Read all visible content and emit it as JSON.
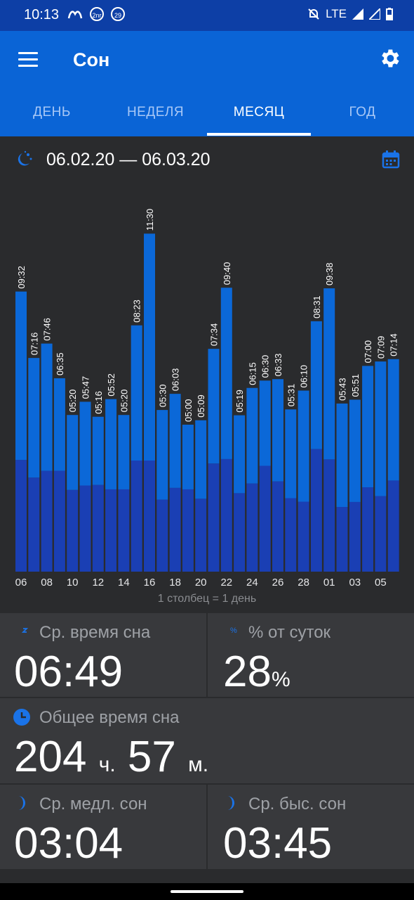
{
  "status_bar": {
    "time": "10:13",
    "badge_1": "2nr",
    "badge_2": "29",
    "network": "LTE"
  },
  "app_bar": {
    "title": "Сон"
  },
  "tabs": [
    {
      "label": "ДЕНЬ",
      "active": false
    },
    {
      "label": "НЕДЕЛЯ",
      "active": false
    },
    {
      "label": "МЕСЯЦ",
      "active": true
    },
    {
      "label": "ГОД",
      "active": false
    }
  ],
  "range": {
    "text": "06.02.20 — 06.03.20"
  },
  "chart_data": {
    "type": "bar",
    "stacked": true,
    "data_labels": [
      "09:32",
      "07:16",
      "07:46",
      "06:35",
      "05:20",
      "05:47",
      "05:16",
      "05:52",
      "05:20",
      "08:23",
      "11:30",
      "05:30",
      "06:03",
      "05:00",
      "05:09",
      "07:34",
      "09:40",
      "05:19",
      "06:15",
      "06:30",
      "06:33",
      "05:31",
      "06:10",
      "08:31",
      "09:38",
      "05:43",
      "05:51",
      "07:00",
      "07:09",
      "07:14"
    ],
    "x_tick_labels": [
      "06",
      "08",
      "10",
      "12",
      "14",
      "16",
      "18",
      "20",
      "22",
      "24",
      "26",
      "28",
      "01",
      "03",
      "05"
    ],
    "series": [
      {
        "color": "#1a3fb4",
        "values": [
          3.8,
          3.2,
          3.43,
          3.43,
          2.78,
          2.93,
          2.95,
          2.8,
          2.8,
          3.78,
          3.78,
          2.45,
          2.85,
          2.8,
          2.48,
          3.68,
          3.83,
          2.67,
          3.0,
          3.6,
          3.07,
          2.5,
          2.38,
          4.17,
          3.82,
          2.2,
          2.37,
          2.87,
          2.57,
          3.1
        ]
      },
      {
        "color": "#0b68d8",
        "values": [
          5.73,
          4.07,
          4.33,
          3.15,
          2.55,
          2.85,
          2.32,
          3.07,
          2.53,
          4.6,
          7.72,
          3.05,
          3.2,
          2.2,
          2.67,
          3.9,
          5.83,
          2.65,
          3.25,
          2.9,
          3.48,
          3.02,
          3.78,
          4.35,
          5.82,
          3.52,
          3.48,
          4.13,
          4.58,
          4.13
        ]
      }
    ],
    "caption": "1 столбец = 1 день"
  },
  "stats": {
    "avg_sleep": {
      "label": "Ср. время сна",
      "value": "06:49"
    },
    "percent_day": {
      "label": "% от суток",
      "value": "28",
      "unit": "%"
    },
    "total": {
      "label": "Общее время сна",
      "hours": "204",
      "hours_unit": "ч.",
      "minutes": "57",
      "minutes_unit": "м."
    },
    "deep": {
      "label": "Ср. медл. сон",
      "value": "03:04"
    },
    "rem": {
      "label": "Ср. быс. сон",
      "value": "03:45"
    }
  }
}
